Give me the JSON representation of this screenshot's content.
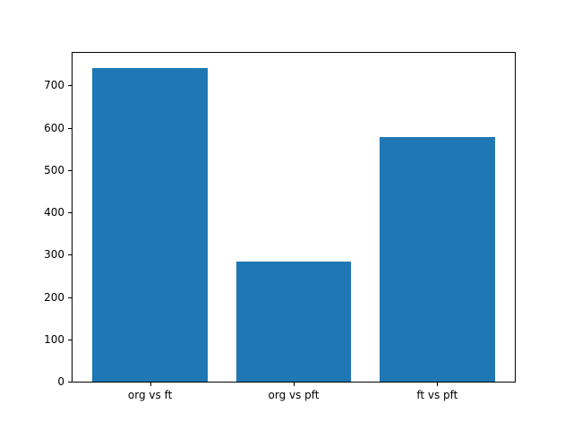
{
  "figure": {
    "background": "#ffffff",
    "text_color": "#000000"
  },
  "chart_data": {
    "type": "bar",
    "title": "",
    "xlabel": "",
    "ylabel": "",
    "categories": [
      "org vs ft",
      "org vs pft",
      "ft vs pft"
    ],
    "values": [
      740,
      284,
      579
    ],
    "bar_color": "#1f77b4",
    "yticks": [
      0,
      100,
      200,
      300,
      400,
      500,
      600,
      700
    ],
    "ylim": [
      0,
      777
    ],
    "xlim": [
      -0.54,
      2.54
    ],
    "bar_width": 0.8,
    "grid": false,
    "legend_position": "none"
  }
}
